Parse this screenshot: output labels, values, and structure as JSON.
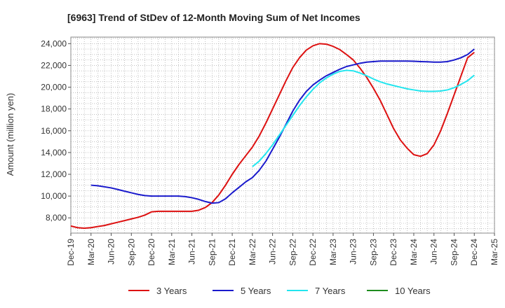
{
  "chart_data": {
    "type": "line",
    "title": "[6963]  Trend of StDev of 12-Month Moving Sum of Net Incomes",
    "ylabel": "Amount (million yen)",
    "xlabel": "",
    "ylim": [
      6600,
      24600
    ],
    "y_ticks": [
      8000,
      10000,
      12000,
      14000,
      16000,
      18000,
      20000,
      22000,
      24000
    ],
    "y_tick_labels": [
      "8,000",
      "10,000",
      "12,000",
      "14,000",
      "16,000",
      "18,000",
      "20,000",
      "22,000",
      "24,000"
    ],
    "categories": [
      "Dec-19",
      "Mar-20",
      "Jun-20",
      "Sep-20",
      "Dec-20",
      "Mar-21",
      "Jun-21",
      "Sep-21",
      "Dec-21",
      "Mar-22",
      "Jun-22",
      "Sep-22",
      "Dec-22",
      "Mar-23",
      "Jun-23",
      "Sep-23",
      "Dec-23",
      "Mar-24",
      "Jun-24",
      "Sep-24",
      "Dec-24",
      "Mar-25"
    ],
    "grid": true,
    "legend_position": "bottom",
    "series": [
      {
        "name": "3 Years",
        "color": "#dd1111",
        "x": [
          "Dec-19",
          "Jan-20",
          "Feb-20",
          "Mar-20",
          "Apr-20",
          "May-20",
          "Jun-20",
          "Jul-20",
          "Aug-20",
          "Sep-20",
          "Oct-20",
          "Nov-20",
          "Dec-20",
          "Jan-21",
          "Feb-21",
          "Mar-21",
          "Apr-21",
          "May-21",
          "Jun-21",
          "Jul-21",
          "Aug-21",
          "Sep-21",
          "Oct-21",
          "Nov-21",
          "Dec-21",
          "Jan-22",
          "Feb-22",
          "Mar-22",
          "Apr-22",
          "May-22",
          "Jun-22",
          "Jul-22",
          "Aug-22",
          "Sep-22",
          "Oct-22",
          "Nov-22",
          "Dec-22",
          "Jan-23",
          "Feb-23",
          "Mar-23",
          "Apr-23",
          "May-23",
          "Jun-23",
          "Jul-23",
          "Aug-23",
          "Sep-23",
          "Oct-23",
          "Nov-23",
          "Dec-23",
          "Jan-24",
          "Feb-24",
          "Mar-24",
          "Apr-24",
          "May-24",
          "Jun-24",
          "Jul-24",
          "Aug-24",
          "Sep-24",
          "Oct-24",
          "Nov-24",
          "Dec-24"
        ],
        "values": [
          7250,
          7100,
          7050,
          7100,
          7200,
          7300,
          7450,
          7600,
          7750,
          7900,
          8050,
          8250,
          8550,
          8600,
          8600,
          8600,
          8600,
          8600,
          8600,
          8700,
          8950,
          9400,
          10100,
          11000,
          12000,
          12900,
          13700,
          14500,
          15500,
          16700,
          18000,
          19300,
          20600,
          21800,
          22700,
          23400,
          23800,
          24000,
          23950,
          23750,
          23450,
          23000,
          22500,
          21750,
          20900,
          19900,
          18800,
          17500,
          16200,
          15150,
          14400,
          13800,
          13650,
          13900,
          14700,
          16000,
          17600,
          19300,
          21000,
          22700,
          23200
        ]
      },
      {
        "name": "5 Years",
        "color": "#1a1acc",
        "x": [
          "Mar-20",
          "Apr-20",
          "May-20",
          "Jun-20",
          "Jul-20",
          "Aug-20",
          "Sep-20",
          "Oct-20",
          "Nov-20",
          "Dec-20",
          "Jan-21",
          "Feb-21",
          "Mar-21",
          "Apr-21",
          "May-21",
          "Jun-21",
          "Jul-21",
          "Aug-21",
          "Sep-21",
          "Oct-21",
          "Nov-21",
          "Dec-21",
          "Jan-22",
          "Feb-22",
          "Mar-22",
          "Apr-22",
          "May-22",
          "Jun-22",
          "Jul-22",
          "Aug-22",
          "Sep-22",
          "Oct-22",
          "Nov-22",
          "Dec-22",
          "Jan-23",
          "Feb-23",
          "Mar-23",
          "Apr-23",
          "May-23",
          "Jun-23",
          "Jul-23",
          "Aug-23",
          "Sep-23",
          "Oct-23",
          "Nov-23",
          "Dec-23",
          "Jan-24",
          "Feb-24",
          "Mar-24",
          "Apr-24",
          "May-24",
          "Jun-24",
          "Jul-24",
          "Aug-24",
          "Sep-24",
          "Oct-24",
          "Nov-24",
          "Dec-24"
        ],
        "values": [
          11000,
          10950,
          10850,
          10750,
          10600,
          10450,
          10300,
          10150,
          10050,
          10000,
          10000,
          10000,
          10000,
          10000,
          9950,
          9850,
          9700,
          9500,
          9350,
          9400,
          9750,
          10300,
          10800,
          11300,
          11700,
          12350,
          13200,
          14300,
          15400,
          16600,
          17800,
          18800,
          19600,
          20200,
          20650,
          21050,
          21350,
          21650,
          21900,
          22050,
          22200,
          22300,
          22350,
          22400,
          22400,
          22400,
          22400,
          22400,
          22380,
          22350,
          22330,
          22300,
          22300,
          22350,
          22500,
          22700,
          23000,
          23500
        ]
      },
      {
        "name": "7 Years",
        "color": "#22e5ee",
        "x": [
          "Mar-22",
          "Apr-22",
          "May-22",
          "Jun-22",
          "Jul-22",
          "Aug-22",
          "Sep-22",
          "Oct-22",
          "Nov-22",
          "Dec-22",
          "Jan-23",
          "Feb-23",
          "Mar-23",
          "Apr-23",
          "May-23",
          "Jun-23",
          "Jul-23",
          "Aug-23",
          "Sep-23",
          "Oct-23",
          "Nov-23",
          "Dec-23",
          "Jan-24",
          "Feb-24",
          "Mar-24",
          "Apr-24",
          "May-24",
          "Jun-24",
          "Jul-24",
          "Aug-24",
          "Sep-24",
          "Oct-24",
          "Nov-24",
          "Dec-24"
        ],
        "values": [
          12700,
          13200,
          13900,
          14700,
          15600,
          16500,
          17400,
          18300,
          19100,
          19800,
          20400,
          20850,
          21200,
          21450,
          21550,
          21500,
          21300,
          21050,
          20750,
          20500,
          20300,
          20150,
          20000,
          19850,
          19750,
          19650,
          19620,
          19620,
          19650,
          19750,
          19950,
          20250,
          20600,
          21100
        ]
      },
      {
        "name": "10 Years",
        "color": "#1e8c1e",
        "x": [],
        "values": []
      }
    ]
  }
}
